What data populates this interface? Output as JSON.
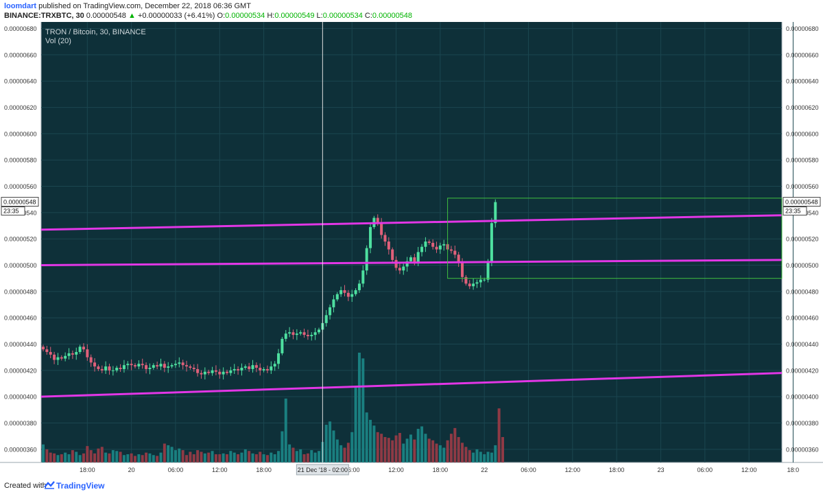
{
  "header": {
    "author": "loomdart",
    "published": "published on TradingView.com, December 22, 2018 06:36 GMT",
    "symbol": "BINANCE:TRXBTC, 30",
    "last": "0.00000548",
    "change": "+0.00000033 (+6.41%)",
    "o_label": "O:",
    "o": "0.00000534",
    "h_label": "H:",
    "h": "0.00000549",
    "l_label": "L:",
    "l": "0.00000534",
    "c_label": "C:",
    "c": "0.00000548"
  },
  "footer": {
    "created": "Created with",
    "brand": "TradingView"
  },
  "chart_data": {
    "type": "candlestick",
    "title": "TRON / Bitcoin, 30, BINANCE",
    "indicator": "Vol (20)",
    "colors": {
      "background": "#0e3039",
      "up": "#4ee0a0",
      "down": "#e0607a",
      "vol_up": "#1a7f80",
      "vol_down": "#8e3a45",
      "trendline": "#e236e6",
      "box": "#40c040",
      "grid": "#1b4650",
      "text": "#cfd8dc"
    },
    "ylim": [
      3.5e-06,
      6.85e-06
    ],
    "y_ticks": [
      "0.00000360",
      "0.00000380",
      "0.00000400",
      "0.00000420",
      "0.00000440",
      "0.00000460",
      "0.00000480",
      "0.00000500",
      "0.00000520",
      "0.00000540",
      "0.00000560",
      "0.00000580",
      "0.00000600",
      "0.00000620",
      "0.00000640",
      "0.00000660",
      "0.00000680"
    ],
    "x_ticks": [
      {
        "label": "18:00",
        "bar": 12
      },
      {
        "label": "20",
        "bar": 24
      },
      {
        "label": "06:00",
        "bar": 36
      },
      {
        "label": "12:00",
        "bar": 48
      },
      {
        "label": "18:00",
        "bar": 60
      },
      {
        "label": "06:00",
        "bar": 84
      },
      {
        "label": "12:00",
        "bar": 96
      },
      {
        "label": "18:00",
        "bar": 108
      },
      {
        "label": "22",
        "bar": 120
      },
      {
        "label": "06:00",
        "bar": 132
      },
      {
        "label": "12:00",
        "bar": 144
      },
      {
        "label": "18:00",
        "bar": 156
      },
      {
        "label": "23",
        "bar": 168
      },
      {
        "label": "06:00",
        "bar": 180
      },
      {
        "label": "12:00",
        "bar": 192
      },
      {
        "label": "18:0",
        "bar": 204
      }
    ],
    "cursor": {
      "label": "21 Dec '18 - 02:00",
      "bar": 76
    },
    "last_price": "0.00000548",
    "countdown": "23:35",
    "close_prices": [
      436,
      434,
      432,
      428,
      430,
      429,
      431,
      433,
      432,
      434,
      438,
      436,
      430,
      426,
      423,
      421,
      420,
      423,
      420,
      420,
      422,
      421,
      424,
      425,
      424,
      423,
      425,
      424,
      421,
      422,
      424,
      423,
      425,
      422,
      423,
      424,
      425,
      426,
      424,
      423,
      422,
      421,
      418,
      417,
      419,
      418,
      420,
      419,
      417,
      419,
      418,
      420,
      421,
      420,
      422,
      423,
      421,
      424,
      422,
      420,
      421,
      420,
      423,
      425,
      433,
      444,
      448,
      449,
      447,
      448,
      449,
      447,
      446,
      447,
      449,
      451,
      456,
      462,
      468,
      474,
      478,
      481,
      479,
      476,
      478,
      481,
      486,
      496,
      513,
      529,
      536,
      532,
      523,
      518,
      512,
      504,
      498,
      496,
      499,
      503,
      506,
      502,
      510,
      514,
      518,
      517,
      514,
      512,
      515,
      516,
      512,
      511,
      508,
      502,
      491,
      486,
      484,
      486,
      487,
      489,
      489,
      502,
      532,
      548
    ],
    "volume": [
      2.2,
      1.6,
      1.2,
      1.1,
      0.9,
      1.0,
      1.2,
      1.0,
      1.5,
      1.3,
      0.9,
      1.1,
      2.0,
      1.5,
      1.1,
      1.7,
      1.9,
      1.2,
      1.1,
      1.5,
      1.4,
      1.3,
      0.9,
      1.0,
      1.1,
      0.8,
      1.0,
      0.9,
      1.2,
      1.1,
      0.9,
      0.8,
      1.2,
      2.3,
      2.1,
      1.9,
      1.5,
      1.7,
      1.5,
      0.9,
      1.3,
      1.0,
      1.5,
      1.3,
      1.1,
      1.2,
      1.4,
      1.0,
      1.0,
      1.1,
      1.0,
      1.4,
      1.2,
      1.0,
      1.2,
      1.6,
      1.4,
      1.1,
      1.0,
      1.3,
      1.0,
      0.9,
      1.2,
      1.0,
      1.4,
      3.8,
      7.8,
      2.2,
      1.8,
      1.4,
      1.6,
      1.0,
      1.1,
      1.5,
      1.2,
      1.4,
      2.5,
      4.6,
      5.0,
      3.9,
      2.8,
      2.1,
      1.8,
      2.4,
      3.7,
      9.2,
      13.4,
      12.7,
      6.1,
      5.2,
      4.5,
      3.7,
      3.5,
      3.1,
      3.0,
      2.7,
      3.3,
      3.6,
      2.3,
      2.9,
      3.4,
      2.8,
      4.1,
      4.4,
      3.5,
      2.9,
      2.7,
      2.3,
      2.1,
      1.8,
      2.7,
      3.5,
      4.2,
      3.1,
      2.4,
      1.9,
      1.5,
      1.2,
      1.6,
      1.3,
      1.0,
      1.3,
      1.2,
      2.1,
      6.6,
      3.1
    ]
  }
}
